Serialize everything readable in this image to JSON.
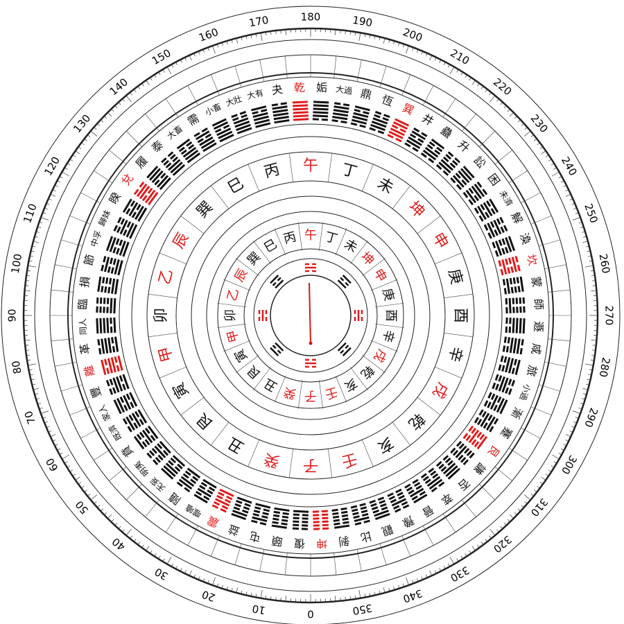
{
  "degree_labels": [
    0,
    10,
    20,
    30,
    40,
    50,
    60,
    70,
    80,
    90,
    100,
    110,
    120,
    130,
    140,
    150,
    160,
    170,
    180,
    190,
    200,
    210,
    220,
    230,
    240,
    250,
    260,
    270,
    280,
    290,
    300,
    310,
    320,
    330,
    340,
    350
  ],
  "hexagrams": [
    {
      "name": "乾",
      "red": true
    },
    {
      "name": "姤",
      "red": false
    },
    {
      "name": "大過",
      "red": false
    },
    {
      "name": "鼎",
      "red": false
    },
    {
      "name": "恆",
      "red": false
    },
    {
      "name": "巽",
      "red": true
    },
    {
      "name": "井",
      "red": false
    },
    {
      "name": "蠱",
      "red": false
    },
    {
      "name": "升",
      "red": false
    },
    {
      "name": "訟",
      "red": false
    },
    {
      "name": "困",
      "red": false
    },
    {
      "name": "未濟",
      "red": false
    },
    {
      "name": "解",
      "red": false
    },
    {
      "name": "渙",
      "red": false
    },
    {
      "name": "坎",
      "red": true
    },
    {
      "name": "蒙",
      "red": false
    },
    {
      "name": "師",
      "red": false
    },
    {
      "name": "遯",
      "red": false
    },
    {
      "name": "咸",
      "red": false
    },
    {
      "name": "旅",
      "red": false
    },
    {
      "name": "小過",
      "red": false
    },
    {
      "name": "漸",
      "red": false
    },
    {
      "name": "蹇",
      "red": false
    },
    {
      "name": "艮",
      "red": true
    },
    {
      "name": "謙",
      "red": false
    },
    {
      "name": "否",
      "red": false
    },
    {
      "name": "萃",
      "red": false
    },
    {
      "name": "晉",
      "red": false
    },
    {
      "name": "豫",
      "red": false
    },
    {
      "name": "觀",
      "red": false
    },
    {
      "name": "比",
      "red": false
    },
    {
      "name": "剝",
      "red": false
    },
    {
      "name": "坤",
      "red": true
    },
    {
      "name": "復",
      "red": false
    },
    {
      "name": "頤",
      "red": false
    },
    {
      "name": "屯",
      "red": false
    },
    {
      "name": "益",
      "red": false
    },
    {
      "name": "震",
      "red": true
    },
    {
      "name": "噬嗑",
      "red": false
    },
    {
      "name": "隨",
      "red": false
    },
    {
      "name": "无妄",
      "red": false
    },
    {
      "name": "明夷",
      "red": false
    },
    {
      "name": "賁",
      "red": false
    },
    {
      "name": "既濟",
      "red": false
    },
    {
      "name": "家人",
      "red": false
    },
    {
      "name": "豐",
      "red": false
    },
    {
      "name": "離",
      "red": true
    },
    {
      "name": "革",
      "red": false
    },
    {
      "name": "同人",
      "red": false
    },
    {
      "name": "臨",
      "red": false
    },
    {
      "name": "損",
      "red": false
    },
    {
      "name": "節",
      "red": false
    },
    {
      "name": "中孚",
      "red": false
    },
    {
      "name": "歸妹",
      "red": false
    },
    {
      "name": "睽",
      "red": false
    },
    {
      "name": "兌",
      "red": true
    },
    {
      "name": "履",
      "red": false
    },
    {
      "name": "泰",
      "red": false
    },
    {
      "name": "大畜",
      "red": false
    },
    {
      "name": "需",
      "red": false
    },
    {
      "name": "小畜",
      "red": false
    },
    {
      "name": "大壯",
      "red": false
    },
    {
      "name": "大有",
      "red": false
    },
    {
      "name": "夬",
      "red": false
    }
  ],
  "mountains": [
    {
      "name": "子",
      "red": true
    },
    {
      "name": "癸",
      "red": true
    },
    {
      "name": "丑",
      "red": false
    },
    {
      "name": "艮",
      "red": false
    },
    {
      "name": "寅",
      "red": false
    },
    {
      "name": "甲",
      "red": true
    },
    {
      "name": "卯",
      "red": false
    },
    {
      "name": "乙",
      "red": true
    },
    {
      "name": "辰",
      "red": true
    },
    {
      "name": "巽",
      "red": false
    },
    {
      "name": "巳",
      "red": false
    },
    {
      "name": "丙",
      "red": false
    },
    {
      "name": "午",
      "red": true
    },
    {
      "name": "丁",
      "red": false
    },
    {
      "name": "未",
      "red": false
    },
    {
      "name": "坤",
      "red": true
    },
    {
      "name": "申",
      "red": true
    },
    {
      "name": "庚",
      "red": false
    },
    {
      "name": "酉",
      "red": false
    },
    {
      "name": "辛",
      "red": false
    },
    {
      "name": "戌",
      "red": true
    },
    {
      "name": "乾",
      "red": false
    },
    {
      "name": "亥",
      "red": false
    },
    {
      "name": "壬",
      "red": true
    }
  ]
}
